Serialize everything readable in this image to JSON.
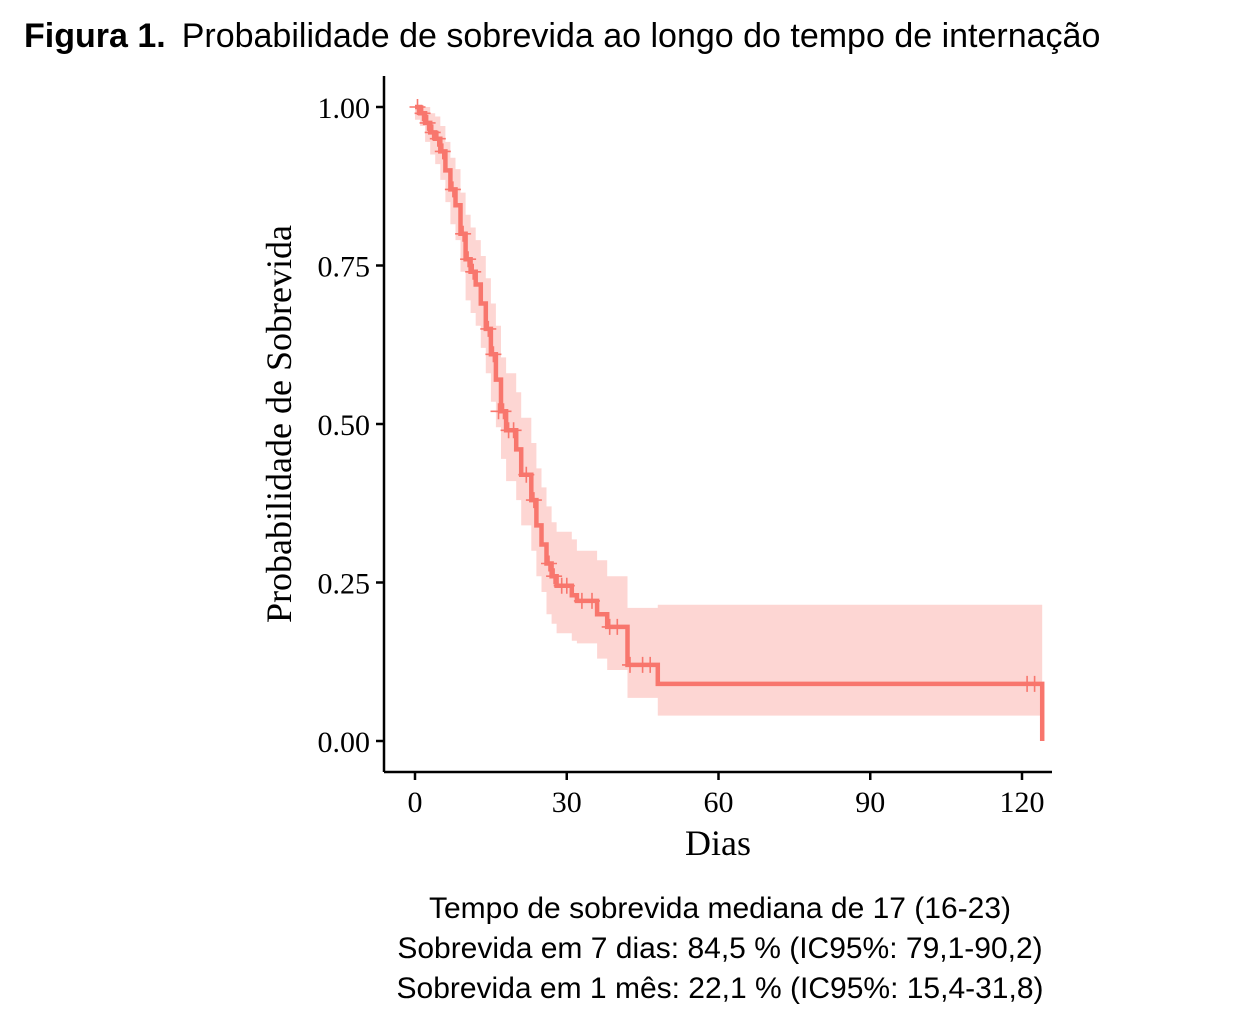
{
  "figure": {
    "label": "Figura 1.",
    "title": "Probabilidade de sobrevida ao longo do tempo de internação"
  },
  "chart_data": {
    "type": "line",
    "subtype": "kaplan-meier step curve with 95% confidence band and censor marks",
    "xlabel": "Dias",
    "ylabel": "Probabilidade de Sobrevida",
    "xlim": [
      -5,
      126
    ],
    "ylim": [
      0,
      1.05
    ],
    "x_ticks": [
      0,
      30,
      60,
      90,
      120
    ],
    "x_tick_labels": [
      "0",
      "30",
      "60",
      "90",
      "120"
    ],
    "y_ticks": [
      0,
      0.25,
      0.5,
      0.75,
      1.0
    ],
    "y_tick_labels": [
      "0.00",
      "0.25",
      "0.50",
      "0.75",
      "1.00"
    ],
    "grid": false,
    "legend": "none",
    "color": "#F8766D",
    "band_color": "#F8766D",
    "series": [
      {
        "steps": [
          [
            0,
            1.0
          ],
          [
            1,
            0.99
          ],
          [
            2,
            0.975
          ],
          [
            3,
            0.96
          ],
          [
            4,
            0.95
          ],
          [
            5,
            0.93
          ],
          [
            6,
            0.9
          ],
          [
            7,
            0.87
          ],
          [
            8,
            0.845
          ],
          [
            9,
            0.8
          ],
          [
            10,
            0.76
          ],
          [
            11,
            0.74
          ],
          [
            12,
            0.72
          ],
          [
            13,
            0.69
          ],
          [
            14,
            0.65
          ],
          [
            15,
            0.61
          ],
          [
            16,
            0.57
          ],
          [
            17,
            0.52
          ],
          [
            18,
            0.49
          ],
          [
            20,
            0.46
          ],
          [
            21,
            0.42
          ],
          [
            23,
            0.38
          ],
          [
            24,
            0.34
          ],
          [
            25,
            0.31
          ],
          [
            26,
            0.28
          ],
          [
            27,
            0.26
          ],
          [
            28,
            0.245
          ],
          [
            31,
            0.23
          ],
          [
            32,
            0.221
          ],
          [
            36,
            0.2
          ],
          [
            38,
            0.18
          ],
          [
            42,
            0.12
          ],
          [
            48,
            0.09
          ],
          [
            123,
            0.09
          ],
          [
            124,
            0.0
          ]
        ],
        "ci_lower": [
          [
            0,
            0.98
          ],
          [
            1,
            0.97
          ],
          [
            2,
            0.945
          ],
          [
            3,
            0.925
          ],
          [
            4,
            0.91
          ],
          [
            5,
            0.885
          ],
          [
            6,
            0.85
          ],
          [
            7,
            0.815
          ],
          [
            8,
            0.79
          ],
          [
            9,
            0.74
          ],
          [
            10,
            0.695
          ],
          [
            11,
            0.675
          ],
          [
            12,
            0.655
          ],
          [
            13,
            0.62
          ],
          [
            14,
            0.58
          ],
          [
            15,
            0.535
          ],
          [
            16,
            0.495
          ],
          [
            17,
            0.445
          ],
          [
            18,
            0.41
          ],
          [
            20,
            0.38
          ],
          [
            21,
            0.34
          ],
          [
            23,
            0.3
          ],
          [
            24,
            0.26
          ],
          [
            25,
            0.235
          ],
          [
            26,
            0.2
          ],
          [
            27,
            0.185
          ],
          [
            28,
            0.17
          ],
          [
            31,
            0.158
          ],
          [
            32,
            0.154
          ],
          [
            36,
            0.13
          ],
          [
            38,
            0.112
          ],
          [
            42,
            0.068
          ],
          [
            48,
            0.04
          ],
          [
            124,
            0.04
          ]
        ],
        "ci_upper": [
          [
            0,
            1.0
          ],
          [
            1,
            1.0
          ],
          [
            2,
            1.0
          ],
          [
            3,
            0.99
          ],
          [
            4,
            0.985
          ],
          [
            5,
            0.97
          ],
          [
            6,
            0.945
          ],
          [
            7,
            0.92
          ],
          [
            8,
            0.902
          ],
          [
            9,
            0.865
          ],
          [
            10,
            0.83
          ],
          [
            11,
            0.81
          ],
          [
            12,
            0.79
          ],
          [
            13,
            0.765
          ],
          [
            14,
            0.73
          ],
          [
            15,
            0.69
          ],
          [
            16,
            0.655
          ],
          [
            17,
            0.605
          ],
          [
            18,
            0.58
          ],
          [
            20,
            0.55
          ],
          [
            21,
            0.51
          ],
          [
            23,
            0.47
          ],
          [
            24,
            0.43
          ],
          [
            25,
            0.4
          ],
          [
            26,
            0.37
          ],
          [
            27,
            0.345
          ],
          [
            28,
            0.33
          ],
          [
            31,
            0.318
          ],
          [
            32,
            0.3
          ],
          [
            36,
            0.285
          ],
          [
            38,
            0.26
          ],
          [
            42,
            0.21
          ],
          [
            48,
            0.215
          ],
          [
            124,
            0.215
          ]
        ],
        "censored": [
          [
            0.5,
            1.0
          ],
          [
            1.5,
            0.99
          ],
          [
            2.5,
            0.975
          ],
          [
            3.5,
            0.96
          ],
          [
            4.5,
            0.95
          ],
          [
            5.5,
            0.93
          ],
          [
            7.5,
            0.87
          ],
          [
            9.5,
            0.8
          ],
          [
            10.5,
            0.76
          ],
          [
            11.5,
            0.74
          ],
          [
            14.5,
            0.65
          ],
          [
            15.5,
            0.61
          ],
          [
            16.5,
            0.52
          ],
          [
            17.5,
            0.52
          ],
          [
            18.5,
            0.49
          ],
          [
            19.5,
            0.49
          ],
          [
            22,
            0.42
          ],
          [
            23.5,
            0.38
          ],
          [
            26.5,
            0.28
          ],
          [
            27.5,
            0.26
          ],
          [
            29,
            0.245
          ],
          [
            30,
            0.245
          ],
          [
            33,
            0.221
          ],
          [
            35,
            0.221
          ],
          [
            38.5,
            0.18
          ],
          [
            40,
            0.18
          ],
          [
            42.5,
            0.12
          ],
          [
            45,
            0.12
          ],
          [
            46.5,
            0.12
          ],
          [
            121,
            0.09
          ],
          [
            122.5,
            0.09
          ]
        ]
      }
    ]
  },
  "caption": {
    "line1": "Tempo de sobrevida mediana de 17 (16-23)",
    "line2": "Sobrevida  em 7 dias: 84,5 % (IC95%: 79,1-90,2)",
    "line3": "Sobrevida  em 1 mês: 22,1 % (IC95%: 15,4-31,8)"
  }
}
